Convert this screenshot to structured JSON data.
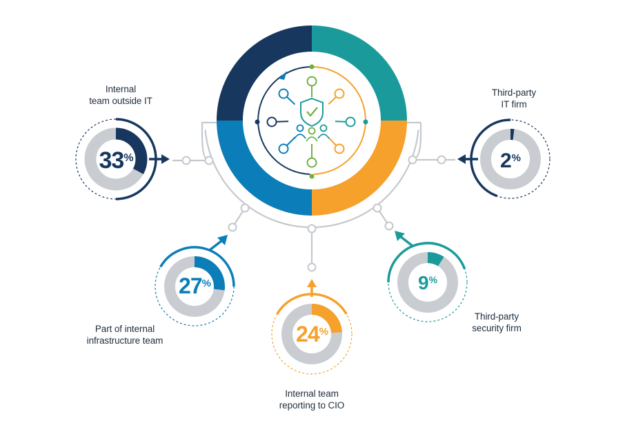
{
  "colors": {
    "navy": "#17375e",
    "blue": "#0b7db8",
    "teal": "#1b9a9c",
    "orange": "#f5a12c",
    "green": "#6fb043",
    "track": "#c9cdd2",
    "connector": "#c4c8cd"
  },
  "center_icon": {
    "name": "team-security-shield-icon",
    "outer_segments": [
      "navy",
      "teal",
      "blue",
      "orange"
    ]
  },
  "categories": [
    {
      "id": "internal-outside-it",
      "label_lines": [
        "Internal",
        "team outside IT"
      ],
      "value": 33,
      "value_text": "33",
      "percent_sign": "%",
      "color": "navy"
    },
    {
      "id": "third-party-it",
      "label_lines": [
        "Third-party",
        "IT firm"
      ],
      "value": 2,
      "value_text": "2",
      "percent_sign": "%",
      "color": "navy"
    },
    {
      "id": "internal-infrastructure",
      "label_lines": [
        "Part of internal",
        "infrastructure team"
      ],
      "value": 27,
      "value_text": "27",
      "percent_sign": "%",
      "color": "blue"
    },
    {
      "id": "reporting-to-cio",
      "label_lines": [
        "Internal team",
        "reporting to CIO"
      ],
      "value": 24,
      "value_text": "24",
      "percent_sign": "%",
      "color": "orange"
    },
    {
      "id": "third-party-security",
      "label_lines": [
        "Third-party",
        "security firm"
      ],
      "value": 9,
      "value_text": "9",
      "percent_sign": "%",
      "color": "teal"
    }
  ]
}
